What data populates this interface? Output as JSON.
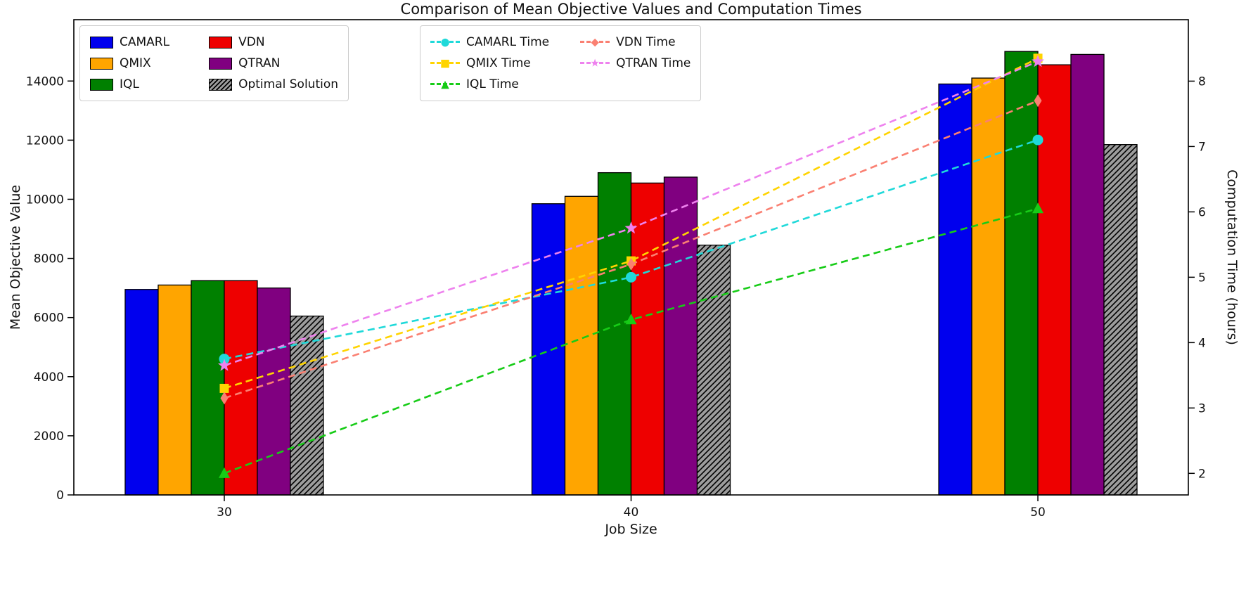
{
  "chart_data": {
    "type": "bar+line",
    "title": "Comparison of Mean Objective Values and Computation Times",
    "xlabel": "Job Size",
    "ylabel_left": "Mean Objective Value",
    "ylabel_right": "Computation Time (hours)",
    "categories": [
      "30",
      "40",
      "50"
    ],
    "legend_position": "upper left, two boxes side by side",
    "grid": false,
    "left_axis": {
      "ticks": [
        0,
        2000,
        4000,
        6000,
        8000,
        10000,
        12000,
        14000
      ],
      "ylim": [
        0,
        16075
      ]
    },
    "right_axis": {
      "ticks": [
        2,
        3,
        4,
        5,
        6,
        7,
        8
      ],
      "ylim": [
        1.67,
        8.94
      ]
    },
    "bar_series": [
      {
        "name": "CAMARL",
        "color": "#0000ee",
        "hatch": false,
        "values": [
          6950,
          9850,
          13900
        ]
      },
      {
        "name": "QMIX",
        "color": "#ffa500",
        "hatch": false,
        "values": [
          7100,
          10100,
          14100
        ]
      },
      {
        "name": "IQL",
        "color": "#008000",
        "hatch": false,
        "values": [
          7250,
          10900,
          15000
        ]
      },
      {
        "name": "VDN",
        "color": "#ee0000",
        "hatch": false,
        "values": [
          7250,
          10550,
          14550
        ]
      },
      {
        "name": "QTRAN",
        "color": "#800080",
        "hatch": false,
        "values": [
          7000,
          10750,
          14900
        ]
      },
      {
        "name": "Optimal Solution",
        "color": "#9c9c9c",
        "hatch": true,
        "values": [
          6050,
          8450,
          11850
        ]
      }
    ],
    "line_series": [
      {
        "name": "CAMARL Time",
        "color": "#1fd9d9",
        "marker": "circle",
        "values": [
          3.75,
          5.0,
          7.1
        ]
      },
      {
        "name": "QMIX Time",
        "color": "#ffd400",
        "marker": "square",
        "values": [
          3.3,
          5.25,
          8.35
        ]
      },
      {
        "name": "IQL Time",
        "color": "#17cc17",
        "marker": "triangle",
        "values": [
          2.0,
          4.35,
          6.05
        ]
      },
      {
        "name": "VDN Time",
        "color": "#fa8072",
        "marker": "diamond",
        "values": [
          3.15,
          5.2,
          7.7
        ]
      },
      {
        "name": "QTRAN Time",
        "color": "#ee82ee",
        "marker": "star",
        "values": [
          3.65,
          5.75,
          8.3
        ]
      }
    ]
  }
}
